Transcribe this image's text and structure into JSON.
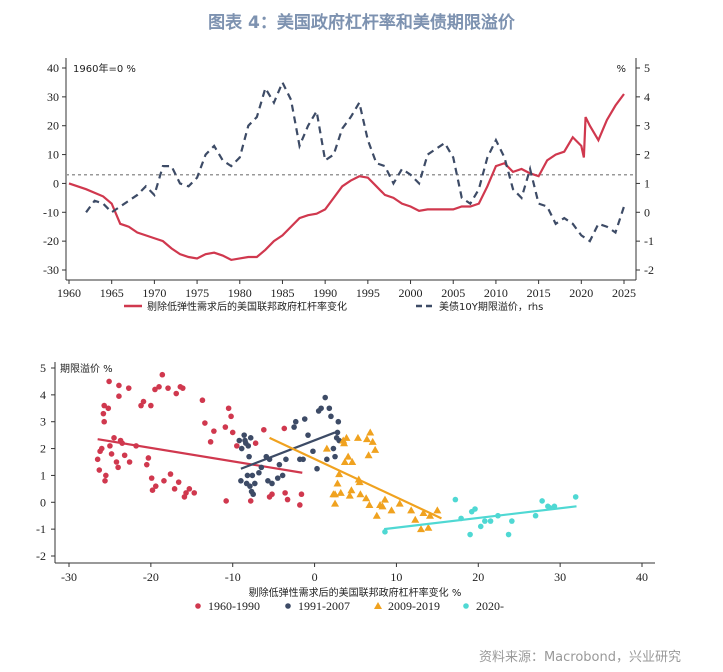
{
  "title": "图表 4：美国政府杠杆率和美债期限溢价",
  "source": "资料来源：Macrobond，兴业研究",
  "chart_data": [
    {
      "type": "line",
      "left_unit_label": "1960年=0 %",
      "right_unit_label": "%",
      "xlim": [
        1960,
        2025
      ],
      "ylim_left": [
        -30,
        40
      ],
      "ylim_right": [
        -2,
        5
      ],
      "xticks": [
        1960,
        1965,
        1970,
        1975,
        1980,
        1985,
        1990,
        1995,
        2000,
        2005,
        2010,
        2015,
        2020,
        2025
      ],
      "yticks_left": [
        -30,
        -20,
        -10,
        0,
        10,
        20,
        30,
        40
      ],
      "yticks_right": [
        -2,
        -1,
        0,
        1,
        2,
        3,
        4,
        5
      ],
      "reference_line_left": 3,
      "legend_position": "bottom",
      "series": [
        {
          "name": "剔除低弹性需求后的美国联邦政府杠杆率变化",
          "axis": "left",
          "color": "#d0384e",
          "style": "solid",
          "x": [
            1960,
            1962,
            1964,
            1965,
            1966,
            1967,
            1968,
            1969,
            1970,
            1971,
            1972,
            1973,
            1974,
            1975,
            1976,
            1977,
            1978,
            1979,
            1980,
            1981,
            1982,
            1983,
            1984,
            1985,
            1986,
            1987,
            1988,
            1989,
            1990,
            1991,
            1992,
            1993,
            1994,
            1995,
            1996,
            1997,
            1998,
            1999,
            2000,
            2001,
            2002,
            2003,
            2004,
            2005,
            2006,
            2007,
            2008,
            2009,
            2010,
            2011,
            2012,
            2013,
            2014,
            2015,
            2016,
            2017,
            2018,
            2019,
            2020,
            2020.3,
            2020.5,
            2021,
            2022,
            2023,
            2024,
            2025
          ],
          "y": [
            0,
            -2,
            -4.5,
            -7,
            -14,
            -15,
            -17,
            -18,
            -19,
            -20,
            -22.5,
            -24.5,
            -25.5,
            -26,
            -24.5,
            -24,
            -25,
            -26.5,
            -26,
            -25.5,
            -25.5,
            -23,
            -20,
            -18,
            -15,
            -12,
            -11,
            -10.5,
            -9,
            -5,
            -1,
            1,
            2.5,
            2,
            -1,
            -4,
            -5,
            -7,
            -8,
            -9.5,
            -9,
            -9,
            -9,
            -9,
            -8,
            -8,
            -7,
            -1,
            6,
            7,
            4,
            5,
            3.5,
            2.5,
            8,
            10,
            11,
            16,
            13,
            9,
            23,
            20,
            15,
            22,
            27,
            31
          ]
        },
        {
          "name": "美债10Y期限溢价，rhs",
          "axis": "right",
          "color": "#3d4b66",
          "style": "dashed",
          "x": [
            1962,
            1963,
            1964,
            1965,
            1966,
            1967,
            1968,
            1969,
            1970,
            1971,
            1972,
            1973,
            1974,
            1975,
            1976,
            1977,
            1978,
            1979,
            1980,
            1981,
            1982,
            1983,
            1984,
            1985,
            1986,
            1987,
            1988,
            1989,
            1990,
            1991,
            1992,
            1993,
            1994,
            1995,
            1996,
            1997,
            1998,
            1999,
            2000,
            2001,
            2002,
            2003,
            2004,
            2005,
            2006,
            2007,
            2008,
            2009,
            2010,
            2011,
            2012,
            2013,
            2014,
            2015,
            2016,
            2017,
            2018,
            2019,
            2020,
            2021,
            2022,
            2023,
            2024,
            2025
          ],
          "y": [
            0,
            0.4,
            0.3,
            0,
            0.2,
            0.4,
            0.6,
            0.9,
            0.6,
            1.6,
            1.6,
            1.0,
            0.9,
            1.2,
            2.0,
            2.3,
            1.8,
            1.6,
            1.9,
            3.0,
            3.3,
            4.3,
            3.8,
            4.5,
            3.9,
            2.3,
            3.0,
            3.5,
            1.8,
            2.0,
            2.9,
            3.3,
            3.8,
            2.5,
            1.7,
            1.6,
            1.0,
            1.5,
            1.3,
            1.0,
            2.0,
            2.2,
            2.4,
            1.9,
            0.5,
            0.3,
            0.8,
            1.9,
            2.5,
            1.9,
            0.8,
            0.5,
            1.5,
            0.3,
            0.2,
            -0.4,
            -0.2,
            -0.4,
            -0.8,
            -1.0,
            -0.4,
            -0.5,
            -0.7,
            0.2
          ]
        }
      ]
    },
    {
      "type": "scatter",
      "ylabel": "期限溢价 %",
      "xlabel": "剔除低弹性需求后的美国联邦政府杠杆率变化 %",
      "xlim": [
        -30,
        40
      ],
      "ylim": [
        -2,
        5
      ],
      "xticks": [
        -30,
        -20,
        -10,
        0,
        10,
        20,
        30,
        40
      ],
      "yticks": [
        -2,
        -1,
        0,
        1,
        2,
        3,
        4,
        5
      ],
      "legend_position": "bottom",
      "series": [
        {
          "name": "1960-1990",
          "color": "#d0384e",
          "marker": "circle",
          "trend": [
            [
              -26.5,
              2.35
            ],
            [
              -1.5,
              1.1
            ]
          ],
          "points": [
            [
              -26.5,
              1.6
            ],
            [
              -26.3,
              1.2
            ],
            [
              -26.2,
              1.9
            ],
            [
              -26,
              2.0
            ],
            [
              -25.8,
              3.3
            ],
            [
              -25.7,
              3.6
            ],
            [
              -25.7,
              3.0
            ],
            [
              -25.6,
              0.8
            ],
            [
              -25.5,
              1.0
            ],
            [
              -25.2,
              3.5
            ],
            [
              -25.1,
              4.5
            ],
            [
              -25,
              2.1
            ],
            [
              -24.8,
              1.8
            ],
            [
              -24.5,
              2.4
            ],
            [
              -24.2,
              1.5
            ],
            [
              -24,
              1.3
            ],
            [
              -23.9,
              4.35
            ],
            [
              -23.9,
              3.95
            ],
            [
              -23.7,
              2.3
            ],
            [
              -23.5,
              2.2
            ],
            [
              -23.2,
              1.75
            ],
            [
              -22.7,
              4.25
            ],
            [
              -22.6,
              1.5
            ],
            [
              -21.8,
              2.1
            ],
            [
              -21.2,
              3.6
            ],
            [
              -20.9,
              3.75
            ],
            [
              -20.5,
              1.4
            ],
            [
              -20.3,
              1.65
            ],
            [
              -20,
              3.6
            ],
            [
              -19.9,
              0.9
            ],
            [
              -19.8,
              0.45
            ],
            [
              -19.5,
              4.2
            ],
            [
              -19.4,
              0.6
            ],
            [
              -19,
              4.3
            ],
            [
              -18.6,
              4.75
            ],
            [
              -18.4,
              0.8
            ],
            [
              -17.9,
              4.25
            ],
            [
              -17.6,
              1.05
            ],
            [
              -17.1,
              0.5
            ],
            [
              -16.9,
              4.05
            ],
            [
              -16.6,
              0.75
            ],
            [
              -16.4,
              4.3
            ],
            [
              -16.1,
              4.25
            ],
            [
              -15.9,
              0.2
            ],
            [
              -15.7,
              0.35
            ],
            [
              -15.3,
              0.5
            ],
            [
              -14.7,
              0.35
            ],
            [
              -13.7,
              3.8
            ],
            [
              -13.4,
              2.95
            ],
            [
              -12.7,
              2.25
            ],
            [
              -12.3,
              2.65
            ],
            [
              -10.9,
              2.8
            ],
            [
              -10.8,
              0.05
            ],
            [
              -10.5,
              3.5
            ],
            [
              -10.2,
              3.2
            ],
            [
              -10.0,
              2.6
            ],
            [
              -9.5,
              2.1
            ],
            [
              -7.8,
              0.05
            ],
            [
              -7.2,
              2.2
            ],
            [
              -6.2,
              2.7
            ],
            [
              -5.5,
              0.2
            ],
            [
              -5.2,
              0.3
            ],
            [
              -3.7,
              2.75
            ],
            [
              -3.6,
              0.35
            ],
            [
              -3.3,
              0.1
            ],
            [
              -1.8,
              -0.1
            ],
            [
              -1.6,
              0.3
            ]
          ]
        },
        {
          "name": "1991-2007",
          "color": "#3d4b66",
          "marker": "circle",
          "trend": [
            [
              -9,
              1.25
            ],
            [
              2.5,
              2.6
            ]
          ],
          "points": [
            [
              -9.2,
              2.3
            ],
            [
              -9.0,
              0.8
            ],
            [
              -8.9,
              2.0
            ],
            [
              -8.6,
              2.5
            ],
            [
              -8.5,
              2.3
            ],
            [
              -8.4,
              2.2
            ],
            [
              -8.3,
              0.7
            ],
            [
              -8.2,
              1.0
            ],
            [
              -8.1,
              2.1
            ],
            [
              -8.0,
              1.7
            ],
            [
              -7.9,
              0.6
            ],
            [
              -7.8,
              2.4
            ],
            [
              -7.7,
              0.4
            ],
            [
              -7.6,
              1.0
            ],
            [
              -7.5,
              0.3
            ],
            [
              -7.3,
              0.7
            ],
            [
              -6.8,
              1.1
            ],
            [
              -6.5,
              1.3
            ],
            [
              -5.9,
              1.7
            ],
            [
              -5.7,
              0.8
            ],
            [
              -5.5,
              1.6
            ],
            [
              -5.2,
              0.7
            ],
            [
              -4.5,
              0.9
            ],
            [
              -4.3,
              1.4
            ],
            [
              -3.9,
              1.0
            ],
            [
              -3.5,
              1.6
            ],
            [
              -2.5,
              2.8
            ],
            [
              -2.3,
              3.0
            ],
            [
              -1.8,
              1.6
            ],
            [
              -1.4,
              1.6
            ],
            [
              -1.2,
              3.1
            ],
            [
              -0.8,
              2.5
            ],
            [
              -0.2,
              1.9
            ],
            [
              0.3,
              1.25
            ],
            [
              0.5,
              3.4
            ],
            [
              0.8,
              3.5
            ],
            [
              1.3,
              3.9
            ],
            [
              1.5,
              1.6
            ],
            [
              1.8,
              3.5
            ],
            [
              2.0,
              3.2
            ],
            [
              2.3,
              2.0
            ],
            [
              2.5,
              1.7
            ],
            [
              2.7,
              2.4
            ],
            [
              2.8,
              2.6
            ],
            [
              2.9,
              3.0
            ],
            [
              3.0,
              2.3
            ]
          ]
        },
        {
          "name": "2009-2019",
          "color": "#f0a21f",
          "marker": "triangle",
          "trend": [
            [
              -5.5,
              2.4
            ],
            [
              15.5,
              -0.6
            ]
          ],
          "points": [
            [
              1.5,
              2.0
            ],
            [
              2.3,
              0.3
            ],
            [
              2.5,
              0.3
            ],
            [
              2.5,
              -0.05
            ],
            [
              2.8,
              0.7
            ],
            [
              3.0,
              1.05
            ],
            [
              3.2,
              0.35
            ],
            [
              3.5,
              2.3
            ],
            [
              3.6,
              2.2
            ],
            [
              3.7,
              1.5
            ],
            [
              3.9,
              2.4
            ],
            [
              4.1,
              1.7
            ],
            [
              4.3,
              0.25
            ],
            [
              4.5,
              0.45
            ],
            [
              4.6,
              1.5
            ],
            [
              5.3,
              2.4
            ],
            [
              5.4,
              0.85
            ],
            [
              5.5,
              0.75
            ],
            [
              5.6,
              0.3
            ],
            [
              6.3,
              0.15
            ],
            [
              6.4,
              2.35
            ],
            [
              6.6,
              1.75
            ],
            [
              6.7,
              -0.1
            ],
            [
              6.8,
              2.6
            ],
            [
              7.1,
              2.25
            ],
            [
              7.4,
              1.95
            ],
            [
              7.6,
              -0.5
            ],
            [
              8.0,
              -0.1
            ],
            [
              8.3,
              -0.15
            ],
            [
              8.6,
              0.1
            ],
            [
              9.4,
              -0.3
            ],
            [
              10.4,
              -0.05
            ],
            [
              11.8,
              -0.3
            ],
            [
              12.3,
              -0.65
            ],
            [
              13.0,
              -1.0
            ],
            [
              13.3,
              -0.4
            ],
            [
              13.9,
              -0.95
            ],
            [
              14.1,
              -0.5
            ],
            [
              15.0,
              -0.3
            ]
          ]
        },
        {
          "name": "2020-",
          "color": "#4fd8d3",
          "marker": "circle",
          "trend": [
            [
              8.5,
              -1.0
            ],
            [
              32,
              -0.15
            ]
          ],
          "points": [
            [
              8.6,
              -1.1
            ],
            [
              17.2,
              0.1
            ],
            [
              17.9,
              -0.6
            ],
            [
              19.0,
              -1.2
            ],
            [
              19.2,
              -0.35
            ],
            [
              19.6,
              -0.25
            ],
            [
              20.3,
              -0.9
            ],
            [
              20.8,
              -0.7
            ],
            [
              21.5,
              -0.7
            ],
            [
              22.4,
              -0.5
            ],
            [
              23.7,
              -1.2
            ],
            [
              24.1,
              -0.7
            ],
            [
              27.0,
              -0.5
            ],
            [
              27.8,
              0.05
            ],
            [
              28.5,
              -0.15
            ],
            [
              28.7,
              -0.2
            ],
            [
              29.3,
              -0.15
            ],
            [
              31.9,
              0.2
            ]
          ]
        }
      ]
    }
  ]
}
